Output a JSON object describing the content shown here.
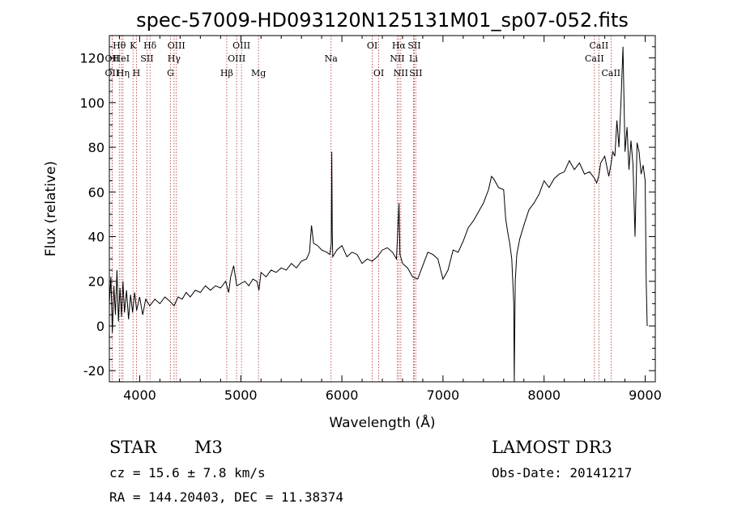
{
  "figure": {
    "title": "spec-57009-HD093120N125131M01_sp07-052.fits",
    "object_class": "STAR",
    "subclass": "M3",
    "survey": "LAMOST DR3",
    "redshift_line": "cz = 15.6 ± 7.8 km/s",
    "obs_date": "Obs-Date: 20141217",
    "coords": "RA = 144.20403, DEC =  11.38374"
  },
  "colors": {
    "line": "#000000",
    "marker": "#b03030"
  },
  "chart_data": {
    "type": "line",
    "title": "spec-57009-HD093120N125131M01_sp07-052.fits",
    "xlabel": "Wavelength (Å)",
    "ylabel": "Flux (relative)",
    "xlim": [
      3700,
      9100
    ],
    "ylim": [
      -25,
      130
    ],
    "xticks": [
      4000,
      5000,
      6000,
      7000,
      8000,
      9000
    ],
    "yticks": [
      -20,
      0,
      20,
      40,
      60,
      80,
      100,
      120
    ],
    "grid": false,
    "spectrum": [
      [
        3700,
        10
      ],
      [
        3715,
        22
      ],
      [
        3730,
        -3
      ],
      [
        3745,
        18
      ],
      [
        3760,
        5
      ],
      [
        3775,
        25
      ],
      [
        3790,
        2
      ],
      [
        3805,
        17
      ],
      [
        3820,
        4
      ],
      [
        3835,
        20
      ],
      [
        3850,
        6
      ],
      [
        3870,
        16
      ],
      [
        3890,
        3
      ],
      [
        3910,
        14
      ],
      [
        3930,
        6
      ],
      [
        3950,
        15
      ],
      [
        3970,
        7
      ],
      [
        4000,
        13
      ],
      [
        4030,
        5
      ],
      [
        4060,
        12
      ],
      [
        4100,
        9
      ],
      [
        4150,
        12
      ],
      [
        4200,
        10
      ],
      [
        4250,
        13
      ],
      [
        4300,
        11
      ],
      [
        4340,
        9
      ],
      [
        4380,
        13
      ],
      [
        4420,
        12
      ],
      [
        4460,
        15
      ],
      [
        4500,
        13
      ],
      [
        4550,
        16
      ],
      [
        4600,
        15
      ],
      [
        4650,
        18
      ],
      [
        4700,
        16
      ],
      [
        4750,
        18
      ],
      [
        4800,
        17
      ],
      [
        4850,
        20
      ],
      [
        4880,
        15
      ],
      [
        4900,
        22
      ],
      [
        4930,
        27
      ],
      [
        4960,
        18
      ],
      [
        5000,
        19
      ],
      [
        5040,
        20
      ],
      [
        5080,
        18
      ],
      [
        5120,
        21
      ],
      [
        5160,
        20
      ],
      [
        5180,
        16
      ],
      [
        5200,
        24
      ],
      [
        5250,
        22
      ],
      [
        5300,
        25
      ],
      [
        5350,
        24
      ],
      [
        5400,
        26
      ],
      [
        5450,
        25
      ],
      [
        5500,
        28
      ],
      [
        5550,
        26
      ],
      [
        5600,
        29
      ],
      [
        5650,
        30
      ],
      [
        5680,
        33
      ],
      [
        5700,
        45
      ],
      [
        5720,
        37
      ],
      [
        5760,
        36
      ],
      [
        5800,
        34
      ],
      [
        5850,
        33
      ],
      [
        5880,
        32
      ],
      [
        5895,
        37
      ],
      [
        5900,
        78
      ],
      [
        5905,
        42
      ],
      [
        5910,
        31
      ],
      [
        5950,
        34
      ],
      [
        6000,
        36
      ],
      [
        6050,
        31
      ],
      [
        6100,
        33
      ],
      [
        6150,
        32
      ],
      [
        6200,
        28
      ],
      [
        6250,
        30
      ],
      [
        6300,
        29
      ],
      [
        6350,
        31
      ],
      [
        6400,
        34
      ],
      [
        6450,
        35
      ],
      [
        6500,
        33
      ],
      [
        6540,
        30
      ],
      [
        6560,
        50
      ],
      [
        6565,
        55
      ],
      [
        6575,
        32
      ],
      [
        6600,
        28
      ],
      [
        6650,
        26
      ],
      [
        6700,
        22
      ],
      [
        6750,
        21
      ],
      [
        6800,
        27
      ],
      [
        6850,
        33
      ],
      [
        6900,
        32
      ],
      [
        6950,
        30
      ],
      [
        7000,
        21
      ],
      [
        7050,
        25
      ],
      [
        7100,
        34
      ],
      [
        7150,
        33
      ],
      [
        7200,
        38
      ],
      [
        7250,
        44
      ],
      [
        7300,
        47
      ],
      [
        7350,
        51
      ],
      [
        7400,
        55
      ],
      [
        7450,
        61
      ],
      [
        7480,
        67
      ],
      [
        7500,
        66
      ],
      [
        7550,
        62
      ],
      [
        7600,
        61
      ],
      [
        7620,
        48
      ],
      [
        7640,
        42
      ],
      [
        7660,
        37
      ],
      [
        7680,
        30
      ],
      [
        7700,
        10
      ],
      [
        7705,
        -25
      ],
      [
        7715,
        20
      ],
      [
        7730,
        32
      ],
      [
        7760,
        39
      ],
      [
        7800,
        45
      ],
      [
        7850,
        52
      ],
      [
        7900,
        55
      ],
      [
        7950,
        59
      ],
      [
        8000,
        65
      ],
      [
        8050,
        62
      ],
      [
        8100,
        66
      ],
      [
        8150,
        68
      ],
      [
        8200,
        69
      ],
      [
        8250,
        74
      ],
      [
        8300,
        70
      ],
      [
        8350,
        73
      ],
      [
        8400,
        68
      ],
      [
        8450,
        69
      ],
      [
        8500,
        66
      ],
      [
        8520,
        64
      ],
      [
        8540,
        67
      ],
      [
        8560,
        73
      ],
      [
        8600,
        76
      ],
      [
        8640,
        67
      ],
      [
        8660,
        72
      ],
      [
        8680,
        78
      ],
      [
        8700,
        76
      ],
      [
        8720,
        92
      ],
      [
        8740,
        80
      ],
      [
        8760,
        100
      ],
      [
        8780,
        125
      ],
      [
        8800,
        78
      ],
      [
        8820,
        89
      ],
      [
        8840,
        70
      ],
      [
        8860,
        83
      ],
      [
        8880,
        72
      ],
      [
        8900,
        40
      ],
      [
        8920,
        82
      ],
      [
        8940,
        78
      ],
      [
        8960,
        68
      ],
      [
        8980,
        72
      ],
      [
        9000,
        65
      ],
      [
        9010,
        20
      ],
      [
        9020,
        0
      ]
    ],
    "lines": [
      {
        "label": "Hθ",
        "x": 3798,
        "row": 1
      },
      {
        "label": "OII",
        "x": 3727,
        "row": 2
      },
      {
        "label": "OII",
        "x": 3727,
        "row": 3
      },
      {
        "label": "HeI",
        "x": 3819,
        "row": 2
      },
      {
        "label": "Hη",
        "x": 3835,
        "row": 3
      },
      {
        "label": "K",
        "x": 3934,
        "row": 1
      },
      {
        "label": "H",
        "x": 3968,
        "row": 3
      },
      {
        "label": "SII",
        "x": 4072,
        "row": 2
      },
      {
        "label": "Hδ",
        "x": 4102,
        "row": 1
      },
      {
        "label": "OIII",
        "x": 4363,
        "row": 1
      },
      {
        "label": "Hγ",
        "x": 4340,
        "row": 2
      },
      {
        "label": "G",
        "x": 4305,
        "row": 3
      },
      {
        "label": "Hβ",
        "x": 4861,
        "row": 3
      },
      {
        "label": "OIII",
        "x": 5007,
        "row": 1
      },
      {
        "label": "OIII",
        "x": 4959,
        "row": 2
      },
      {
        "label": "Mg",
        "x": 5175,
        "row": 3
      },
      {
        "label": "Na",
        "x": 5893,
        "row": 2
      },
      {
        "label": "OI",
        "x": 6300,
        "row": 1
      },
      {
        "label": "OI",
        "x": 6364,
        "row": 3
      },
      {
        "label": "Hα",
        "x": 6563,
        "row": 1
      },
      {
        "label": "NII",
        "x": 6548,
        "row": 2
      },
      {
        "label": "NII",
        "x": 6583,
        "row": 3
      },
      {
        "label": "SII",
        "x": 6716,
        "row": 1
      },
      {
        "label": "Li",
        "x": 6708,
        "row": 2
      },
      {
        "label": "SII",
        "x": 6731,
        "row": 3
      },
      {
        "label": "CaII",
        "x": 8542,
        "row": 1
      },
      {
        "label": "CaII",
        "x": 8498,
        "row": 2
      },
      {
        "label": "CaII",
        "x": 8662,
        "row": 3
      }
    ]
  }
}
